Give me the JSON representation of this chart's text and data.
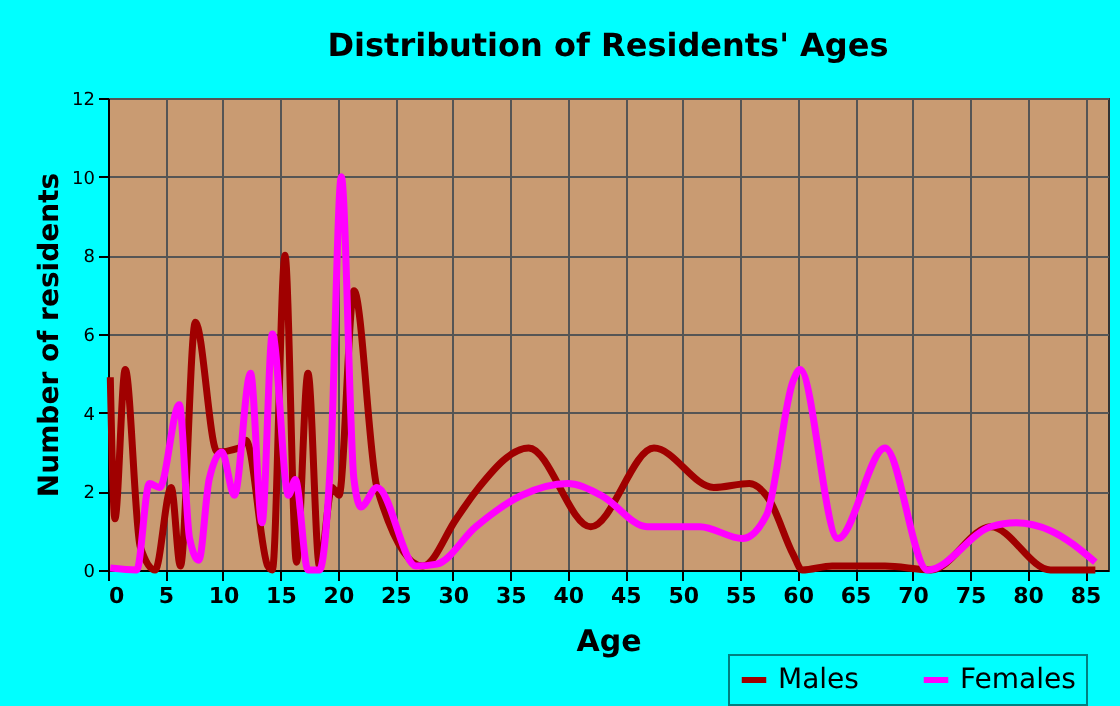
{
  "chart_data": {
    "type": "line",
    "title": "Distribution of Residents' Ages",
    "xlabel": "Age",
    "ylabel": "Number of residents",
    "xlim": [
      0,
      87
    ],
    "xticks": [
      0,
      5,
      10,
      15,
      20,
      25,
      30,
      35,
      40,
      45,
      50,
      55,
      60,
      65,
      70,
      75,
      80,
      85
    ],
    "ylim": [
      0,
      12
    ],
    "yticks": [
      0,
      2,
      4,
      6,
      8,
      10,
      12
    ],
    "grid": true,
    "legend": "bottom right",
    "series": [
      {
        "name": "Males",
        "color": "#a00000",
        "x": [
          0.2,
          0.6,
          1.5,
          2.8,
          4.1,
          5.5,
          6.3,
          7.6,
          9.5,
          11.4,
          12,
          13.9,
          14.3,
          15.4,
          16.4,
          17.4,
          18.4,
          19.5,
          20.1,
          21.4,
          23.4,
          27.4,
          30.3,
          32,
          36.6,
          42,
          47.5,
          52.7,
          55.8,
          57.5,
          59.6,
          60.4,
          63,
          67.6,
          71.6,
          76.8,
          82,
          85.9
        ],
        "values": [
          4.9,
          1.3,
          5.1,
          0.6,
          0,
          2.1,
          0.1,
          6.3,
          3.0,
          3.1,
          3.3,
          0.1,
          0,
          8.0,
          0.2,
          5.0,
          0.1,
          2.1,
          1.9,
          7.1,
          2.1,
          0.1,
          1.3,
          2.0,
          3.1,
          1.1,
          3.1,
          2.1,
          2.2,
          1.8,
          0.4,
          0,
          0.1,
          0.1,
          0,
          1.1,
          0,
          0
        ]
      },
      {
        "name": "Females",
        "color": "#ff00ff",
        "x": [
          0.2,
          2.5,
          3.6,
          4.5,
          6.2,
          7.1,
          7.9,
          8.8,
          9.9,
          11,
          12.4,
          13.4,
          14.3,
          15.7,
          16.3,
          17.4,
          18.4,
          19.4,
          20.3,
          21.4,
          22,
          23.4,
          26.8,
          28.6,
          32,
          36,
          40,
          42.9,
          46.9,
          51.5,
          55.2,
          57.3,
          59.6,
          60.2,
          63.5,
          67.6,
          71.3,
          76.8,
          79,
          82,
          85.9
        ],
        "values": [
          0.05,
          0,
          2.2,
          2.1,
          4.2,
          0.8,
          0.25,
          2.3,
          3.0,
          1.9,
          5.0,
          1.2,
          6.0,
          1.9,
          2.3,
          0,
          0,
          3.0,
          10.0,
          2.3,
          1.6,
          2.1,
          0.1,
          0.15,
          1.1,
          1.9,
          2.2,
          1.9,
          1.1,
          1.1,
          0.8,
          1.4,
          4.8,
          5.1,
          0.8,
          3.1,
          0,
          1.1,
          1.2,
          1.0,
          0.2
        ]
      }
    ]
  }
}
